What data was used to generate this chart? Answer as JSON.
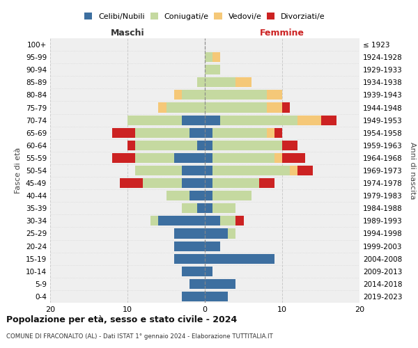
{
  "age_groups": [
    "0-4",
    "5-9",
    "10-14",
    "15-19",
    "20-24",
    "25-29",
    "30-34",
    "35-39",
    "40-44",
    "45-49",
    "50-54",
    "55-59",
    "60-64",
    "65-69",
    "70-74",
    "75-79",
    "80-84",
    "85-89",
    "90-94",
    "95-99",
    "100+"
  ],
  "birth_years": [
    "2019-2023",
    "2014-2018",
    "2009-2013",
    "2004-2008",
    "1999-2003",
    "1994-1998",
    "1989-1993",
    "1984-1988",
    "1979-1983",
    "1974-1978",
    "1969-1973",
    "1964-1968",
    "1959-1963",
    "1954-1958",
    "1949-1953",
    "1944-1948",
    "1939-1943",
    "1934-1938",
    "1929-1933",
    "1924-1928",
    "≤ 1923"
  ],
  "colors": {
    "celibi": "#3d6fa0",
    "coniugati": "#c5d9a0",
    "vedovi": "#f5c878",
    "divorziati": "#cc2222"
  },
  "maschi": {
    "celibi": [
      3,
      2,
      3,
      4,
      4,
      4,
      6,
      1,
      2,
      3,
      3,
      4,
      1,
      2,
      3,
      0,
      0,
      0,
      0,
      0,
      0
    ],
    "coniugati": [
      0,
      0,
      0,
      0,
      0,
      0,
      1,
      2,
      3,
      5,
      6,
      5,
      8,
      7,
      7,
      5,
      3,
      1,
      0,
      0,
      0
    ],
    "vedovi": [
      0,
      0,
      0,
      0,
      0,
      0,
      0,
      0,
      0,
      0,
      0,
      0,
      0,
      0,
      0,
      1,
      1,
      0,
      0,
      0,
      0
    ],
    "divorziati": [
      0,
      0,
      0,
      0,
      0,
      0,
      0,
      0,
      0,
      3,
      0,
      3,
      1,
      3,
      0,
      0,
      0,
      0,
      0,
      0,
      0
    ]
  },
  "femmine": {
    "celibi": [
      3,
      4,
      1,
      9,
      2,
      3,
      2,
      1,
      1,
      1,
      1,
      1,
      1,
      1,
      2,
      0,
      0,
      0,
      0,
      0,
      0
    ],
    "coniugati": [
      0,
      0,
      0,
      0,
      0,
      1,
      2,
      3,
      5,
      6,
      10,
      8,
      9,
      7,
      10,
      8,
      8,
      4,
      2,
      1,
      0
    ],
    "vedovi": [
      0,
      0,
      0,
      0,
      0,
      0,
      0,
      0,
      0,
      0,
      1,
      1,
      0,
      1,
      3,
      2,
      2,
      2,
      0,
      1,
      0
    ],
    "divorziati": [
      0,
      0,
      0,
      0,
      0,
      0,
      1,
      0,
      0,
      2,
      2,
      3,
      2,
      1,
      2,
      1,
      0,
      0,
      0,
      0,
      0
    ]
  },
  "title": "Popolazione per età, sesso e stato civile - 2024",
  "subtitle": "COMUNE DI FRACONALTO (AL) - Dati ISTAT 1° gennaio 2024 - Elaborazione TUTTITALIA.IT",
  "xlabel_left": "Maschi",
  "xlabel_right": "Femmine",
  "ylabel_left": "Fasce di età",
  "ylabel_right": "Anni di nascita",
  "xlim": 20,
  "legend_labels": [
    "Celibi/Nubili",
    "Coniugati/e",
    "Vedovi/e",
    "Divorziati/e"
  ],
  "background_color": "#efefef"
}
